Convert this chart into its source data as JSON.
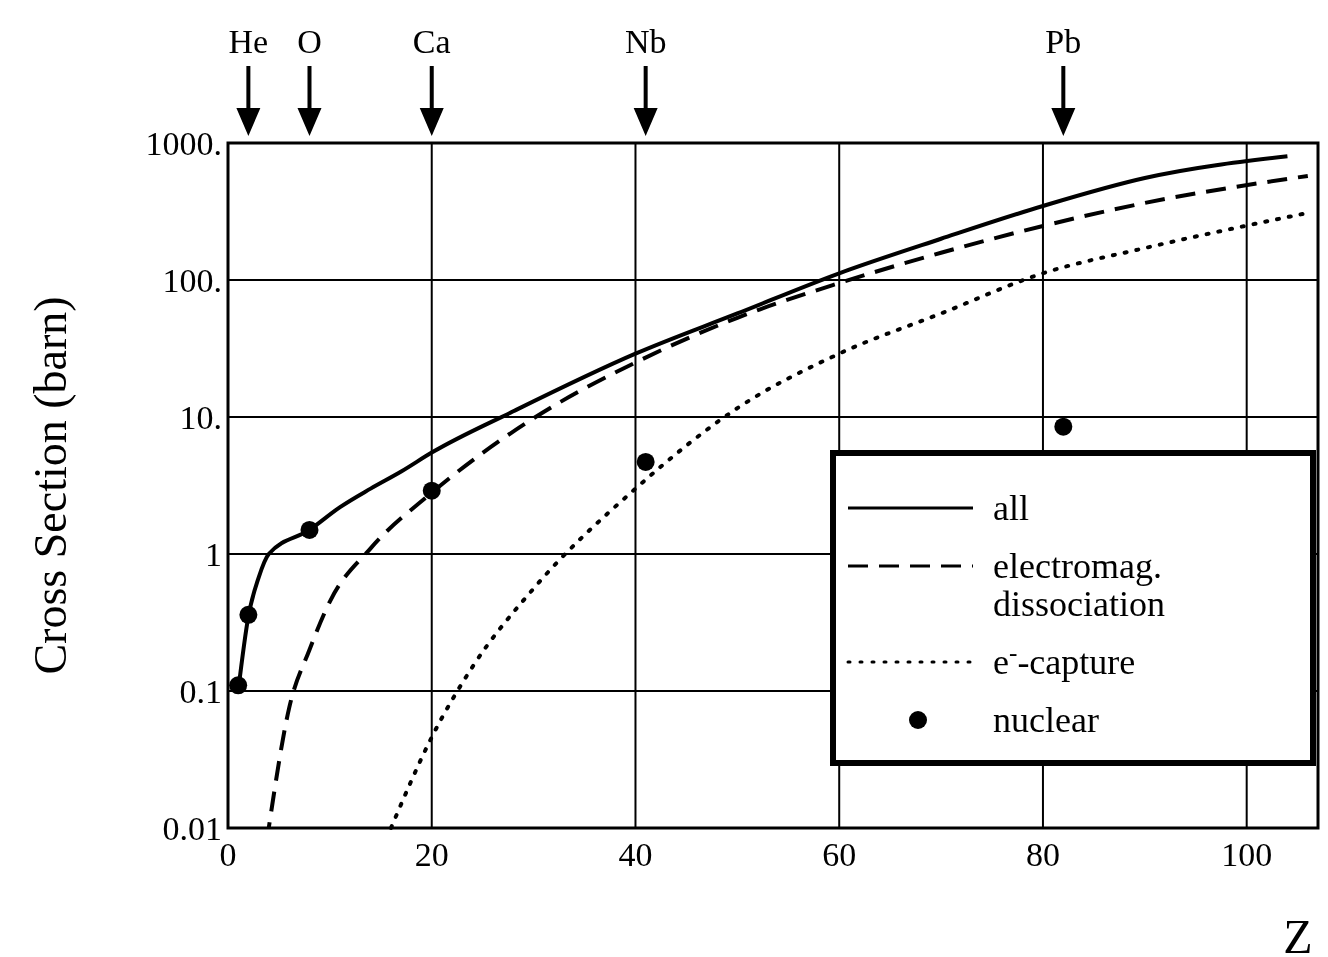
{
  "chart_data": {
    "type": "line",
    "xlabel": "Z",
    "ylabel": "Cross Section (barn)",
    "log": "y",
    "grid": true,
    "legend": "bottom right",
    "xlim": [
      0,
      107
    ],
    "xticks": [
      0,
      20,
      40,
      60,
      80,
      100
    ],
    "annotations": [
      "He",
      "O",
      "Ca",
      "Nb",
      "Pb"
    ],
    "ylim": [
      0.01,
      1000
    ],
    "yticks": [
      {
        "value": 0.01,
        "label": "0.01"
      },
      {
        "value": 0.1,
        "label": "0.1"
      },
      {
        "value": 1,
        "label": "1"
      },
      {
        "value": 10,
        "label": "10."
      },
      {
        "value": 100,
        "label": "100."
      },
      {
        "value": 1000,
        "label": "1000."
      }
    ],
    "series": [
      {
        "name": "all",
        "line_style": "solid",
        "color": "#000000",
        "x": [
          1,
          2,
          3,
          4,
          8,
          11,
          14,
          17,
          20,
          28,
          40,
          50,
          60,
          70,
          80,
          90,
          104
        ],
        "values": [
          0.1,
          0.35,
          0.67,
          1.0,
          1.5,
          2.2,
          3.0,
          4.0,
          5.5,
          11,
          29,
          57,
          112,
          200,
          347,
          555,
          800
        ]
      },
      {
        "name": "electromag. dissociation",
        "line_style": "dashed",
        "color": "#000000",
        "x": [
          4,
          6,
          8,
          10,
          14,
          20,
          30,
          40,
          50,
          60,
          70,
          80,
          90,
          106
        ],
        "values": [
          0.01,
          0.075,
          0.2,
          0.45,
          1.1,
          2.8,
          9.8,
          25,
          53,
          95,
          158,
          248,
          365,
          575
        ]
      },
      {
        "name": "e$^{-}$-capture",
        "line_style": "dotted",
        "color": "#000000",
        "x": [
          16,
          20,
          24,
          30,
          40,
          50,
          60,
          70,
          80,
          90,
          106
        ],
        "values": [
          0.01,
          0.046,
          0.15,
          0.56,
          3.0,
          11.6,
          29,
          57,
          112,
          171,
          309
        ]
      },
      {
        "name": "nuclear",
        "type": "scatter",
        "marker": "circle",
        "color": "#000000",
        "x": [
          1,
          2,
          8,
          20,
          41,
          82
        ],
        "values": [
          0.11,
          0.36,
          1.5,
          2.9,
          4.7,
          8.5
        ]
      }
    ]
  }
}
